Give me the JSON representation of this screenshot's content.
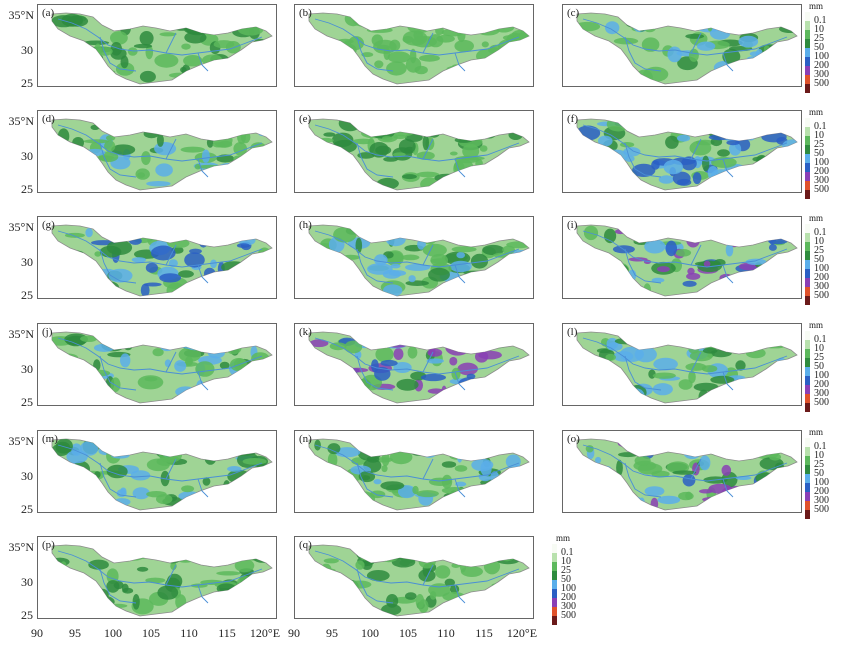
{
  "colors": {
    "land": "#9fd495",
    "river": "#4a8fd6",
    "outline": "#8c8c8c",
    "scale": [
      "#f7fbf4",
      "#b8e1ad",
      "#5cb85c",
      "#2e8b3e",
      "#5aaeea",
      "#2a5fc4",
      "#8a3fb5",
      "#e0522b",
      "#6b1a1a"
    ]
  },
  "panels": [
    "(a)",
    "(b)",
    "(c)",
    "(d)",
    "(e)",
    "(f)",
    "(g)",
    "(h)",
    "(i)",
    "(j)",
    "(k)",
    "(l)",
    "(m)",
    "(n)",
    "(o)",
    "(p)",
    "(q)"
  ],
  "y_ticks": [
    "35°N",
    "30",
    "25"
  ],
  "x_ticks": [
    "90",
    "95",
    "100",
    "105",
    "110",
    "115",
    "120°E"
  ],
  "legend": {
    "unit": "mm",
    "levels": [
      "0.1",
      "10",
      "25",
      "50",
      "100",
      "200",
      "300",
      "500"
    ]
  }
}
